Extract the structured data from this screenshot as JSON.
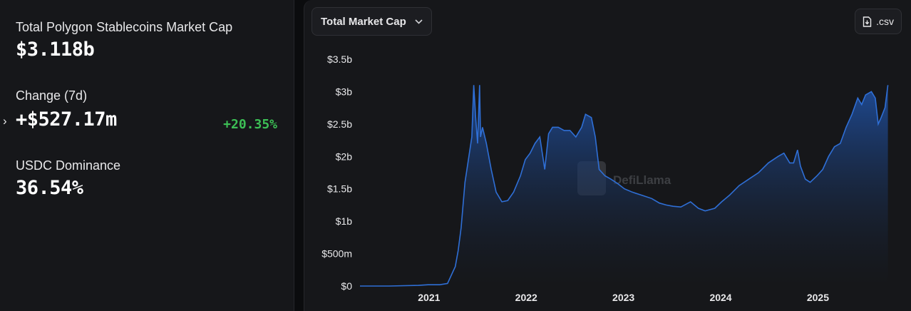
{
  "stats": {
    "total_label": "Total Polygon Stablecoins Market Cap",
    "total_value": "$3.118b",
    "change_label": "Change (7d)",
    "change_value": "+$527.17m",
    "change_pct": "+20.35%",
    "dominance_label": "USDC Dominance",
    "dominance_value": "36.54%"
  },
  "controls": {
    "metric_select": "Total Market Cap",
    "csv_label": ".csv"
  },
  "watermark": "DefiLlama",
  "colors": {
    "line": "#2f6fd6",
    "fill_top": "#1f4d9a",
    "positive": "#3cbf55",
    "panel_bg": "#16171a",
    "page_bg": "#0b0c0e"
  },
  "chart_data": {
    "type": "area",
    "title": "",
    "xlabel": "",
    "ylabel": "",
    "ylim": [
      0,
      3.5
    ],
    "y_unit": "billion USD",
    "y_ticks": [
      {
        "v": 0,
        "label": "$0"
      },
      {
        "v": 0.5,
        "label": "$500m"
      },
      {
        "v": 1,
        "label": "$1b"
      },
      {
        "v": 1.5,
        "label": "$1.5b"
      },
      {
        "v": 2,
        "label": "$2b"
      },
      {
        "v": 2.5,
        "label": "$2.5b"
      },
      {
        "v": 3,
        "label": "$3b"
      },
      {
        "v": 3.5,
        "label": "$3.5b"
      }
    ],
    "x_ticks": [
      "2021",
      "2022",
      "2023",
      "2024",
      "2025"
    ],
    "xlim": [
      2020.3,
      2025.85
    ],
    "grid": false,
    "series": [
      {
        "name": "",
        "points": [
          [
            2020.3,
            0.0
          ],
          [
            2020.6,
            0.0
          ],
          [
            2020.9,
            0.01
          ],
          [
            2021.0,
            0.02
          ],
          [
            2021.12,
            0.02
          ],
          [
            2021.2,
            0.04
          ],
          [
            2021.28,
            0.3
          ],
          [
            2021.31,
            0.55
          ],
          [
            2021.34,
            0.9
          ],
          [
            2021.38,
            1.6
          ],
          [
            2021.42,
            2.0
          ],
          [
            2021.45,
            2.3
          ],
          [
            2021.47,
            3.1
          ],
          [
            2021.49,
            2.6
          ],
          [
            2021.51,
            2.2
          ],
          [
            2021.53,
            3.1
          ],
          [
            2021.54,
            2.3
          ],
          [
            2021.56,
            2.45
          ],
          [
            2021.6,
            2.2
          ],
          [
            2021.65,
            1.8
          ],
          [
            2021.7,
            1.45
          ],
          [
            2021.76,
            1.3
          ],
          [
            2021.82,
            1.32
          ],
          [
            2021.88,
            1.45
          ],
          [
            2021.95,
            1.7
          ],
          [
            2022.0,
            1.95
          ],
          [
            2022.05,
            2.05
          ],
          [
            2022.1,
            2.2
          ],
          [
            2022.15,
            2.3
          ],
          [
            2022.2,
            1.8
          ],
          [
            2022.24,
            2.35
          ],
          [
            2022.28,
            2.45
          ],
          [
            2022.34,
            2.45
          ],
          [
            2022.4,
            2.4
          ],
          [
            2022.46,
            2.4
          ],
          [
            2022.52,
            2.3
          ],
          [
            2022.58,
            2.45
          ],
          [
            2022.62,
            2.65
          ],
          [
            2022.68,
            2.6
          ],
          [
            2022.72,
            2.3
          ],
          [
            2022.76,
            1.8
          ],
          [
            2022.82,
            1.7
          ],
          [
            2022.88,
            1.65
          ],
          [
            2022.95,
            1.58
          ],
          [
            2023.02,
            1.5
          ],
          [
            2023.1,
            1.45
          ],
          [
            2023.2,
            1.4
          ],
          [
            2023.3,
            1.35
          ],
          [
            2023.38,
            1.28
          ],
          [
            2023.45,
            1.25
          ],
          [
            2023.52,
            1.23
          ],
          [
            2023.6,
            1.22
          ],
          [
            2023.7,
            1.3
          ],
          [
            2023.78,
            1.2
          ],
          [
            2023.85,
            1.16
          ],
          [
            2023.95,
            1.2
          ],
          [
            2024.02,
            1.3
          ],
          [
            2024.1,
            1.4
          ],
          [
            2024.2,
            1.55
          ],
          [
            2024.3,
            1.65
          ],
          [
            2024.4,
            1.75
          ],
          [
            2024.5,
            1.9
          ],
          [
            2024.6,
            2.0
          ],
          [
            2024.66,
            2.05
          ],
          [
            2024.72,
            1.9
          ],
          [
            2024.76,
            1.9
          ],
          [
            2024.8,
            2.1
          ],
          [
            2024.83,
            1.85
          ],
          [
            2024.88,
            1.65
          ],
          [
            2024.93,
            1.6
          ],
          [
            2025.0,
            1.7
          ],
          [
            2025.06,
            1.8
          ],
          [
            2025.12,
            2.0
          ],
          [
            2025.18,
            2.15
          ],
          [
            2025.24,
            2.2
          ],
          [
            2025.3,
            2.45
          ],
          [
            2025.36,
            2.65
          ],
          [
            2025.42,
            2.9
          ],
          [
            2025.46,
            2.8
          ],
          [
            2025.5,
            2.95
          ],
          [
            2025.56,
            3.0
          ],
          [
            2025.6,
            2.9
          ],
          [
            2025.63,
            2.5
          ],
          [
            2025.66,
            2.6
          ],
          [
            2025.7,
            2.75
          ],
          [
            2025.73,
            3.1
          ]
        ]
      }
    ]
  }
}
